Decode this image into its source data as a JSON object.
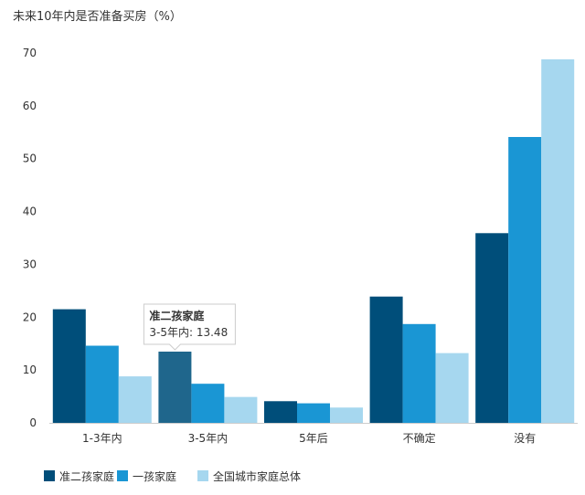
{
  "chart_data": {
    "type": "bar",
    "title": "未来10年内是否准备买房（%）",
    "xlabel": "",
    "ylabel": "",
    "ylim": [
      0,
      70
    ],
    "yticks": [
      0,
      10,
      20,
      30,
      40,
      50,
      60,
      70
    ],
    "categories": [
      "1-3年内",
      "3-5年内",
      "5年后",
      "不确定",
      "没有"
    ],
    "series": [
      {
        "name": "准二孩家庭",
        "color": "#004e7a",
        "values": [
          21.5,
          13.48,
          4.1,
          23.9,
          35.9
        ]
      },
      {
        "name": "一孩家庭",
        "color": "#1a96d4",
        "values": [
          14.6,
          7.4,
          3.7,
          18.7,
          54.1
        ]
      },
      {
        "name": "全国城市家庭总体",
        "color": "#a6d7ef",
        "values": [
          8.8,
          4.9,
          2.9,
          13.2,
          68.8
        ]
      }
    ],
    "highlight_color": "#1f668c",
    "legend_position": "bottom-left",
    "tooltip": {
      "series_index": 0,
      "category_index": 1,
      "title": "准二孩家庭",
      "text": "3-5年内: 13.48"
    }
  }
}
